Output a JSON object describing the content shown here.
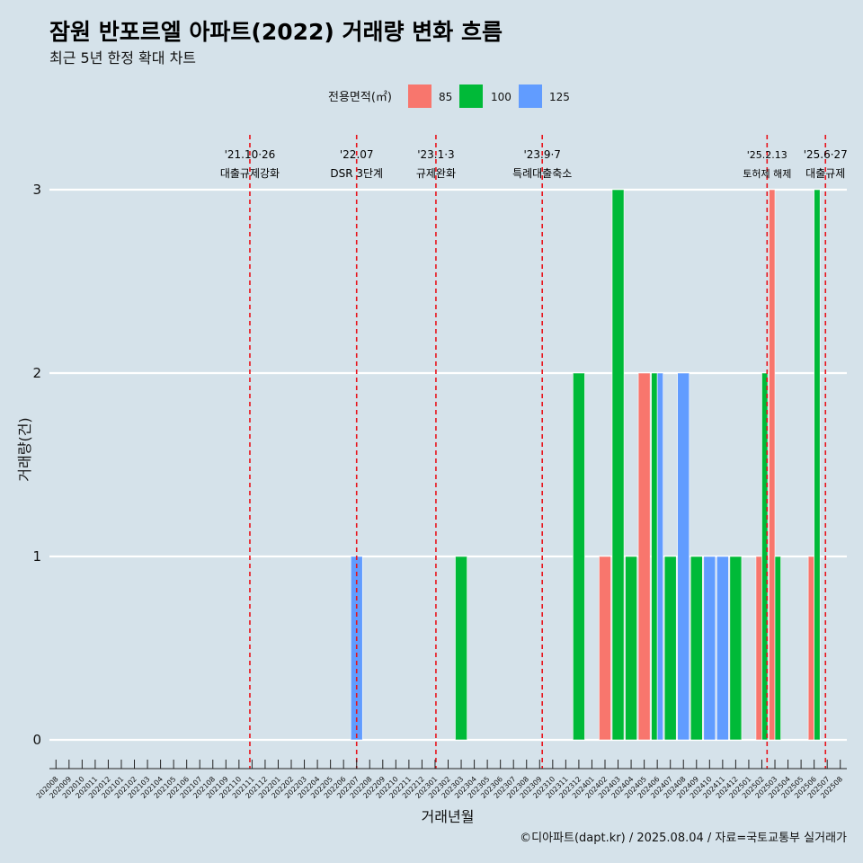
{
  "title": "잠원 반포르엘 아파트(2022) 거래량 변화 흐름",
  "subtitle": "최근 5년 한정 확대 차트",
  "caption": "©디아파트(dapt.kr) / 2025.08.04 / 자료=국토교통부 실거래가",
  "chart_data": {
    "type": "bar",
    "xlabel": "거래년월",
    "ylabel": "거래량(건)",
    "ylim": [
      0,
      3
    ],
    "yticks": [
      0,
      1,
      2,
      3
    ],
    "grid": true,
    "legend": {
      "title": "전용면적(㎡)",
      "placement": "top",
      "entries": [
        "85",
        "100",
        "125"
      ]
    },
    "colors": {
      "85": "#f8766d",
      "100": "#00ba38",
      "125": "#619cff"
    },
    "categories": [
      "202008",
      "202009",
      "202010",
      "202011",
      "202012",
      "202101",
      "202102",
      "202103",
      "202104",
      "202105",
      "202106",
      "202107",
      "202108",
      "202109",
      "202110",
      "202111",
      "202112",
      "202201",
      "202202",
      "202203",
      "202204",
      "202205",
      "202206",
      "202207",
      "202208",
      "202209",
      "202210",
      "202211",
      "202212",
      "202301",
      "202302",
      "202303",
      "202304",
      "202305",
      "202306",
      "202307",
      "202308",
      "202309",
      "202310",
      "202311",
      "202312",
      "202401",
      "202402",
      "202403",
      "202404",
      "202405",
      "202406",
      "202407",
      "202408",
      "202409",
      "202410",
      "202411",
      "202412",
      "202501",
      "202502",
      "202503",
      "202504",
      "202505",
      "202506",
      "202507",
      "202508"
    ],
    "bars": [
      {
        "month": "202207",
        "series": "125",
        "value": 1,
        "offset": 0,
        "width": 0.9
      },
      {
        "month": "202303",
        "series": "100",
        "value": 1,
        "offset": 0,
        "width": 0.9
      },
      {
        "month": "202312",
        "series": "100",
        "value": 2,
        "offset": 0,
        "width": 0.9
      },
      {
        "month": "202402",
        "series": "85",
        "value": 1,
        "offset": 0,
        "width": 0.9
      },
      {
        "month": "202403",
        "series": "100",
        "value": 3,
        "offset": 0,
        "width": 0.9
      },
      {
        "month": "202404",
        "series": "100",
        "value": 1,
        "offset": 0,
        "width": 0.9
      },
      {
        "month": "202405",
        "series": "85",
        "value": 2,
        "offset": 0,
        "width": 0.9
      },
      {
        "month": "202406",
        "series": "100",
        "value": 2,
        "offset": -0.225,
        "width": 0.45
      },
      {
        "month": "202406",
        "series": "125",
        "value": 2,
        "offset": 0.225,
        "width": 0.45
      },
      {
        "month": "202407",
        "series": "100",
        "value": 1,
        "offset": 0,
        "width": 0.9
      },
      {
        "month": "202408",
        "series": "125",
        "value": 2,
        "offset": 0,
        "width": 0.9
      },
      {
        "month": "202409",
        "series": "100",
        "value": 1,
        "offset": 0,
        "width": 0.9
      },
      {
        "month": "202410",
        "series": "125",
        "value": 1,
        "offset": 0,
        "width": 0.9
      },
      {
        "month": "202411",
        "series": "125",
        "value": 1,
        "offset": 0,
        "width": 0.9
      },
      {
        "month": "202412",
        "series": "100",
        "value": 1,
        "offset": 0,
        "width": 0.9
      },
      {
        "month": "202502",
        "series": "85",
        "value": 1,
        "offset": -0.225,
        "width": 0.45
      },
      {
        "month": "202502",
        "series": "100",
        "value": 2,
        "offset": 0.225,
        "width": 0.45
      },
      {
        "month": "202503",
        "series": "85",
        "value": 3,
        "offset": -0.225,
        "width": 0.45
      },
      {
        "month": "202503",
        "series": "100",
        "value": 1,
        "offset": 0.225,
        "width": 0.45
      },
      {
        "month": "202506",
        "series": "85",
        "value": 1,
        "offset": -0.225,
        "width": 0.45
      },
      {
        "month": "202506",
        "series": "100",
        "value": 3,
        "offset": 0.225,
        "width": 0.45
      }
    ],
    "events": [
      {
        "date": "2021-10-26",
        "line1": "'21.10·26",
        "line2": "대출규제강화"
      },
      {
        "date": "2022-07-01",
        "line1": "'22.07",
        "line2": "DSR 3단계"
      },
      {
        "date": "2023-01-03",
        "line1": "'23.1·3",
        "line2": "규제완화"
      },
      {
        "date": "2023-09-07",
        "line1": "'23.9·7",
        "line2": "특례대출축소"
      },
      {
        "date": "2025-02-13",
        "line1": "'25.2.13",
        "line2": "토허제 해제",
        "small": true
      },
      {
        "date": "2025-06-27",
        "line1": "'25.6·27",
        "line2": "대출규제"
      }
    ]
  }
}
